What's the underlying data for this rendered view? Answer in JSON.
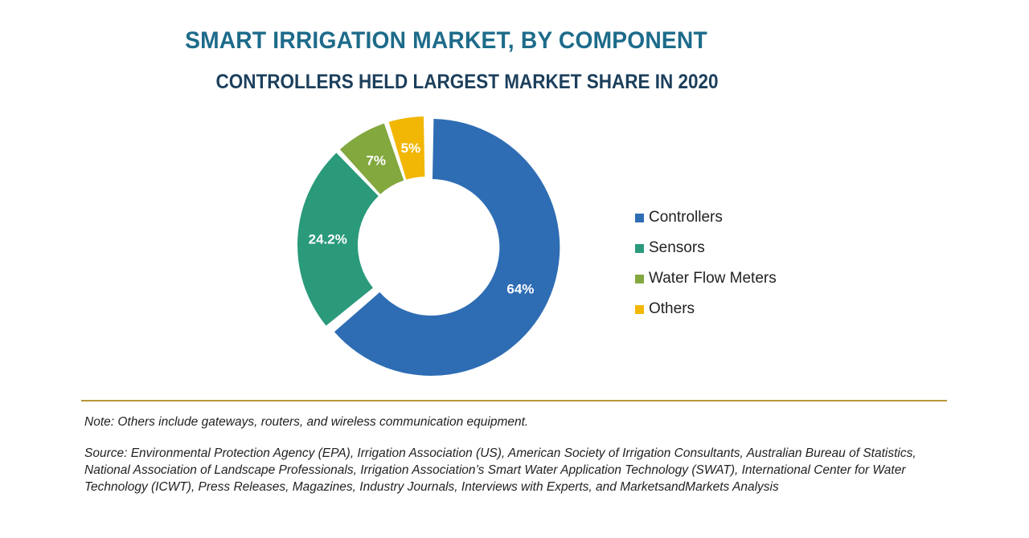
{
  "chart_data": {
    "type": "pie",
    "donut": true,
    "title": "SMART IRRIGATION MARKET, BY COMPONENT",
    "subtitle": "CONTROLLERS HELD LARGEST MARKET SHARE IN 2020",
    "categories": [
      "Controllers",
      "Sensors",
      "Water Flow Meters",
      "Others"
    ],
    "values": [
      64,
      24.2,
      7,
      5
    ],
    "data_labels": [
      "64%",
      "24.2%",
      "7%",
      "5%"
    ],
    "colors": [
      "#2e6db4",
      "#2a9a7a",
      "#82a83e",
      "#f2b705"
    ],
    "legend_position": "right",
    "exploded_slice": "Controllers"
  },
  "note": "Note: Others include gateways, routers, and wireless communication equipment.",
  "source": "Source: Environmental Protection Agency (EPA), Irrigation Association (US), American Society of Irrigation Consultants, Australian Bureau of Statistics, National Association of Landscape Professionals, Irrigation Association’s Smart Water Application Technology (SWAT), International Center for Water Technology (ICWT), Press Releases, Magazines, Industry Journals, Interviews with Experts, and MarketsandMarkets Analysis"
}
